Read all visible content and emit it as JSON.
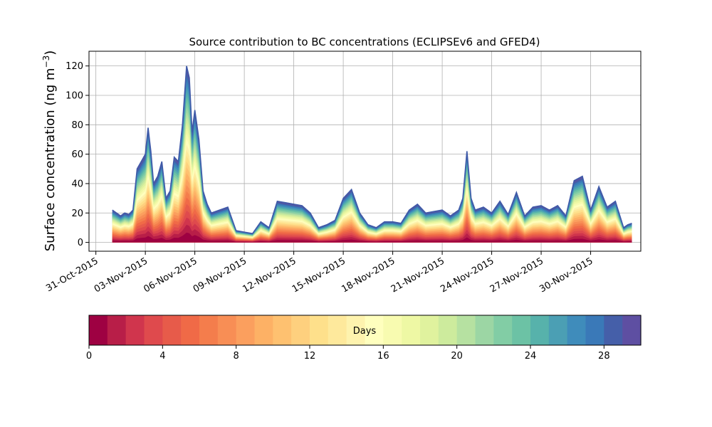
{
  "chart_data": {
    "type": "area",
    "title": "Source contribution to BC concentrations (ECLIPSEv6 and GFED4)",
    "ylabel": "Surface concentration (ng m",
    "ylabel_unit_power": "−3",
    "ylabel_suffix": ")",
    "xlabel": "",
    "ylim": [
      -6,
      130
    ],
    "xlim": [
      "2015-10-30T14:00",
      "2015-12-03T01:00"
    ],
    "yticks": [
      0,
      20,
      40,
      60,
      80,
      100,
      120
    ],
    "xticks": [
      "31-Oct-2015",
      "03-Nov-2015",
      "06-Nov-2015",
      "09-Nov-2015",
      "12-Nov-2015",
      "15-Nov-2015",
      "18-Nov-2015",
      "21-Nov-2015",
      "24-Nov-2015",
      "27-Nov-2015",
      "30-Nov-2015"
    ],
    "xtick_dates": [
      "2015-10-31",
      "2015-11-03",
      "2015-11-06",
      "2015-11-09",
      "2015-11-12",
      "2015-11-15",
      "2015-11-18",
      "2015-11-21",
      "2015-11-24",
      "2015-11-27",
      "2015-11-30"
    ],
    "grid": true,
    "total_series": {
      "name": "",
      "x": [
        "2015-11-01T00:00",
        "2015-11-01T06:00",
        "2015-11-01T12:00",
        "2015-11-01T18:00",
        "2015-11-02T00:00",
        "2015-11-02T06:00",
        "2015-11-02T12:00",
        "2015-11-02T18:00",
        "2015-11-03T00:00",
        "2015-11-03T04:00",
        "2015-11-03T08:00",
        "2015-11-03T12:00",
        "2015-11-03T18:00",
        "2015-11-04T00:00",
        "2015-11-04T06:00",
        "2015-11-04T12:00",
        "2015-11-04T18:00",
        "2015-11-05T00:00",
        "2015-11-05T06:00",
        "2015-11-05T12:00",
        "2015-11-05T16:00",
        "2015-11-05T20:00",
        "2015-11-06T00:00",
        "2015-11-06T06:00",
        "2015-11-06T12:00",
        "2015-11-06T18:00",
        "2015-11-07T00:00",
        "2015-11-07T12:00",
        "2015-11-08T00:00",
        "2015-11-08T12:00",
        "2015-11-09T00:00",
        "2015-11-09T12:00",
        "2015-11-10T00:00",
        "2015-11-10T12:00",
        "2015-11-11T00:00",
        "2015-11-11T12:00",
        "2015-11-12T00:00",
        "2015-11-12T12:00",
        "2015-11-13T00:00",
        "2015-11-13T12:00",
        "2015-11-14T00:00",
        "2015-11-14T12:00",
        "2015-11-15T00:00",
        "2015-11-15T12:00",
        "2015-11-16T00:00",
        "2015-11-16T12:00",
        "2015-11-17T00:00",
        "2015-11-17T12:00",
        "2015-11-18T00:00",
        "2015-11-18T12:00",
        "2015-11-19T00:00",
        "2015-11-19T12:00",
        "2015-11-20T00:00",
        "2015-11-20T12:00",
        "2015-11-21T00:00",
        "2015-11-21T12:00",
        "2015-11-22T00:00",
        "2015-11-22T06:00",
        "2015-11-22T12:00",
        "2015-11-22T18:00",
        "2015-11-23T00:00",
        "2015-11-23T12:00",
        "2015-11-24T00:00",
        "2015-11-24T12:00",
        "2015-11-25T00:00",
        "2015-11-25T12:00",
        "2015-11-26T00:00",
        "2015-11-26T12:00",
        "2015-11-27T00:00",
        "2015-11-27T12:00",
        "2015-11-28T00:00",
        "2015-11-28T12:00",
        "2015-11-29T00:00",
        "2015-11-29T12:00",
        "2015-11-30T00:00",
        "2015-11-30T12:00",
        "2015-12-01T00:00",
        "2015-12-01T12:00",
        "2015-12-02T00:00",
        "2015-12-02T06:00",
        "2015-12-02T12:00"
      ],
      "values": [
        22,
        20,
        18,
        20,
        19,
        22,
        50,
        55,
        60,
        78,
        62,
        40,
        45,
        55,
        30,
        35,
        58,
        55,
        80,
        120,
        112,
        75,
        90,
        70,
        35,
        26,
        20,
        22,
        24,
        8,
        7,
        6,
        14,
        10,
        28,
        27,
        26,
        25,
        20,
        10,
        12,
        15,
        30,
        36,
        20,
        12,
        10,
        14,
        14,
        13,
        22,
        26,
        20,
        21,
        22,
        18,
        22,
        30,
        62,
        30,
        22,
        24,
        20,
        28,
        19,
        34,
        18,
        24,
        25,
        22,
        25,
        18,
        42,
        45,
        22,
        38,
        24,
        28,
        10,
        12,
        13
      ]
    },
    "colorbar": {
      "label": "Days",
      "range": [
        0,
        30
      ],
      "ticks": [
        0,
        4,
        8,
        12,
        16,
        20,
        24,
        28
      ],
      "colors": [
        "#9e0142",
        "#b81e48",
        "#d0354d",
        "#df4a4d",
        "#e75b4a",
        "#f06a47",
        "#f47d4c",
        "#f88e55",
        "#fb9f5e",
        "#fdb165",
        "#fec170",
        "#fed07e",
        "#fee08b",
        "#fee99c",
        "#fef3ae",
        "#ffffbe",
        "#f8fbb0",
        "#eef8a4",
        "#e0f29e",
        "#cdeb9d",
        "#b6e1a1",
        "#9cd6a4",
        "#82cda5",
        "#6cc2a5",
        "#57b2ab",
        "#4b9fb4",
        "#3f8cbb",
        "#3a79b8",
        "#455fa9",
        "#5e4fa2"
      ]
    }
  }
}
